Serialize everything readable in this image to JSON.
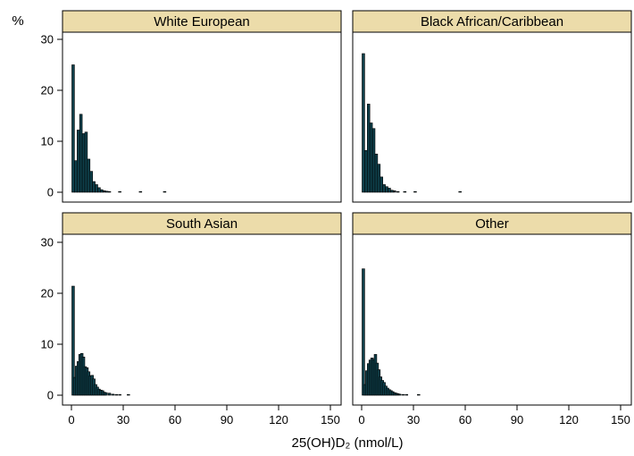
{
  "chart_data": {
    "type": "bar",
    "ylabel": "%",
    "xlabel": "25(OH)D₂ (nmol/L)",
    "xlim": [
      0,
      150
    ],
    "ylim": [
      0,
      30
    ],
    "xticks": [
      0,
      30,
      60,
      90,
      120,
      150
    ],
    "yticks": [
      0,
      10,
      20,
      30
    ],
    "bin_width": 1.5,
    "colors": {
      "strip_fill": "#ecdcaa",
      "bar_fill": "#0e3f4a",
      "bar_outline": "#000000"
    },
    "panels": [
      {
        "name": "White European",
        "bins": [
          {
            "x": 1,
            "y": 25.0
          },
          {
            "x": 2.5,
            "y": 6.2
          },
          {
            "x": 4,
            "y": 12.2
          },
          {
            "x": 5.5,
            "y": 15.3
          },
          {
            "x": 7,
            "y": 11.5
          },
          {
            "x": 8.5,
            "y": 11.8
          },
          {
            "x": 10,
            "y": 6.5
          },
          {
            "x": 11.5,
            "y": 4.1
          },
          {
            "x": 13,
            "y": 2.1
          },
          {
            "x": 14.5,
            "y": 1.5
          },
          {
            "x": 16,
            "y": 0.9
          },
          {
            "x": 17.5,
            "y": 0.5
          },
          {
            "x": 19,
            "y": 0.3
          },
          {
            "x": 20.5,
            "y": 0.2
          },
          {
            "x": 22,
            "y": 0.1
          },
          {
            "x": 28,
            "y": 0.1
          },
          {
            "x": 40,
            "y": 0.05
          },
          {
            "x": 54,
            "y": 0.05
          }
        ]
      },
      {
        "name": "Black African/Caribbean",
        "bins": [
          {
            "x": 1,
            "y": 27.2
          },
          {
            "x": 2.5,
            "y": 8.2
          },
          {
            "x": 4,
            "y": 17.3
          },
          {
            "x": 5.5,
            "y": 13.6
          },
          {
            "x": 7,
            "y": 12.5
          },
          {
            "x": 8.5,
            "y": 7.5
          },
          {
            "x": 10,
            "y": 5.5
          },
          {
            "x": 11.5,
            "y": 3.0
          },
          {
            "x": 13,
            "y": 1.5
          },
          {
            "x": 14.5,
            "y": 1.1
          },
          {
            "x": 16,
            "y": 0.8
          },
          {
            "x": 17.5,
            "y": 0.4
          },
          {
            "x": 19,
            "y": 0.3
          },
          {
            "x": 21,
            "y": 0.1
          },
          {
            "x": 25,
            "y": 0.05
          },
          {
            "x": 31,
            "y": 0.05
          },
          {
            "x": 57,
            "y": 0.05
          }
        ]
      },
      {
        "name": "South Asian",
        "bins": [
          {
            "x": 1,
            "y": 21.4
          },
          {
            "x": 2,
            "y": 3.5
          },
          {
            "x": 3,
            "y": 5.7
          },
          {
            "x": 4,
            "y": 6.6
          },
          {
            "x": 5,
            "y": 8.0
          },
          {
            "x": 6,
            "y": 8.2
          },
          {
            "x": 7,
            "y": 7.5
          },
          {
            "x": 8,
            "y": 5.6
          },
          {
            "x": 9,
            "y": 5.4
          },
          {
            "x": 10,
            "y": 4.6
          },
          {
            "x": 11,
            "y": 3.8
          },
          {
            "x": 12,
            "y": 3.9
          },
          {
            "x": 13,
            "y": 3.2
          },
          {
            "x": 14,
            "y": 2.1
          },
          {
            "x": 15,
            "y": 1.6
          },
          {
            "x": 16,
            "y": 1.2
          },
          {
            "x": 17,
            "y": 1.0
          },
          {
            "x": 18,
            "y": 0.9
          },
          {
            "x": 19,
            "y": 0.6
          },
          {
            "x": 20,
            "y": 0.5
          },
          {
            "x": 22,
            "y": 0.4
          },
          {
            "x": 24,
            "y": 0.2
          },
          {
            "x": 26,
            "y": 0.1
          },
          {
            "x": 28,
            "y": 0.1
          },
          {
            "x": 33,
            "y": 0.05
          }
        ]
      },
      {
        "name": "Other",
        "bins": [
          {
            "x": 1,
            "y": 24.8
          },
          {
            "x": 2,
            "y": 2.1
          },
          {
            "x": 3,
            "y": 4.8
          },
          {
            "x": 4,
            "y": 6.2
          },
          {
            "x": 5,
            "y": 6.9
          },
          {
            "x": 6,
            "y": 7.3
          },
          {
            "x": 7,
            "y": 7.0
          },
          {
            "x": 8,
            "y": 8.0
          },
          {
            "x": 9,
            "y": 6.3
          },
          {
            "x": 10,
            "y": 5.0
          },
          {
            "x": 11,
            "y": 3.6
          },
          {
            "x": 12,
            "y": 2.9
          },
          {
            "x": 13,
            "y": 2.5
          },
          {
            "x": 14,
            "y": 1.8
          },
          {
            "x": 15,
            "y": 1.4
          },
          {
            "x": 16,
            "y": 1.1
          },
          {
            "x": 17,
            "y": 0.9
          },
          {
            "x": 18,
            "y": 0.7
          },
          {
            "x": 19,
            "y": 0.5
          },
          {
            "x": 20,
            "y": 0.4
          },
          {
            "x": 21,
            "y": 0.3
          },
          {
            "x": 22,
            "y": 0.2
          },
          {
            "x": 24,
            "y": 0.15
          },
          {
            "x": 26,
            "y": 0.1
          },
          {
            "x": 33,
            "y": 0.05
          }
        ]
      }
    ]
  }
}
